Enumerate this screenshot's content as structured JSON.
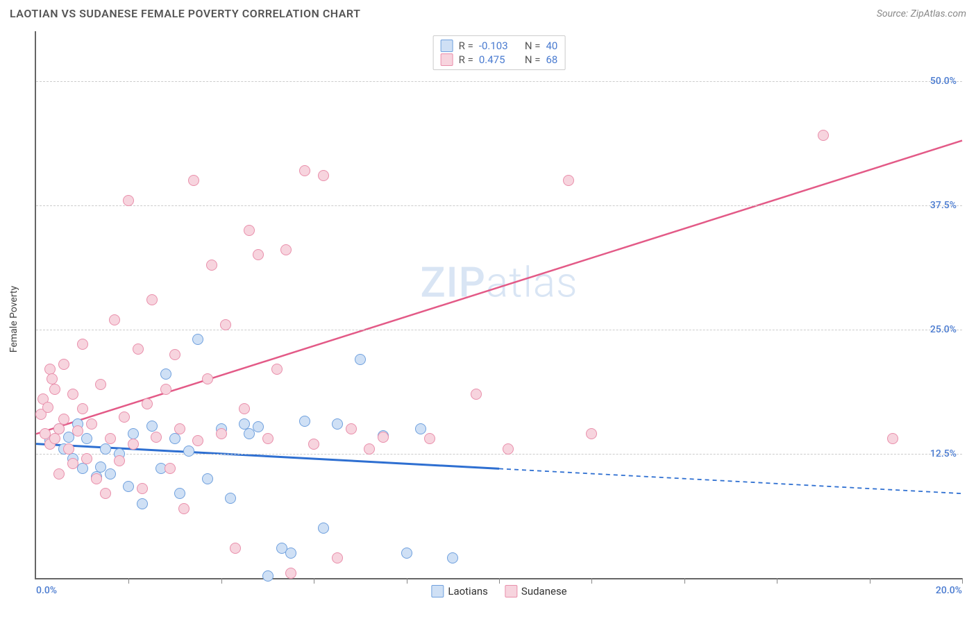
{
  "title": "LAOTIAN VS SUDANESE FEMALE POVERTY CORRELATION CHART",
  "source_label": "Source: ZipAtlas.com",
  "watermark_bold": "ZIP",
  "watermark_thin": "atlas",
  "y_axis_title": "Female Poverty",
  "chart": {
    "type": "scatter",
    "xlim": [
      0,
      20
    ],
    "ylim": [
      0,
      55
    ],
    "x_tick_positions": [
      0,
      2,
      4,
      6,
      8,
      10,
      12,
      14,
      16,
      18,
      20
    ],
    "y_gridlines": [
      12.5,
      25.0,
      37.5,
      50.0
    ],
    "y_labels": [
      "12.5%",
      "25.0%",
      "37.5%",
      "50.0%"
    ],
    "x_min_label": "0.0%",
    "x_max_label": "20.0%",
    "axis_label_color": "#4a7bd0",
    "grid_color": "#cccccc",
    "background_color": "#ffffff",
    "point_radius": 8
  },
  "series": [
    {
      "name": "Laotians",
      "fill": "#cfe0f5",
      "stroke": "#6fa0de",
      "legend_R_label": "R =",
      "legend_R_value": "-0.103",
      "legend_N_label": "N =",
      "legend_N_value": "40",
      "trend": {
        "x1": 0,
        "y1": 13.5,
        "x2_solid": 10,
        "y2_solid": 11.0,
        "x2": 20,
        "y2": 8.5,
        "color": "#2e6fd1",
        "width": 3
      },
      "points": [
        [
          0.3,
          13.8
        ],
        [
          0.5,
          15.0
        ],
        [
          0.6,
          13.0
        ],
        [
          0.7,
          14.2
        ],
        [
          0.8,
          12.0
        ],
        [
          0.9,
          15.5
        ],
        [
          1.0,
          11.0
        ],
        [
          1.1,
          14.0
        ],
        [
          1.3,
          10.2
        ],
        [
          1.4,
          11.2
        ],
        [
          1.5,
          13.0
        ],
        [
          1.6,
          10.5
        ],
        [
          1.8,
          12.5
        ],
        [
          2.0,
          9.2
        ],
        [
          2.1,
          14.5
        ],
        [
          2.3,
          7.5
        ],
        [
          2.5,
          15.3
        ],
        [
          2.7,
          11.0
        ],
        [
          2.8,
          20.5
        ],
        [
          3.0,
          14.0
        ],
        [
          3.1,
          8.5
        ],
        [
          3.3,
          12.8
        ],
        [
          3.5,
          24.0
        ],
        [
          3.7,
          10.0
        ],
        [
          4.0,
          15.0
        ],
        [
          4.2,
          8.0
        ],
        [
          4.5,
          15.5
        ],
        [
          4.6,
          14.5
        ],
        [
          4.8,
          15.2
        ],
        [
          5.0,
          0.2
        ],
        [
          5.3,
          3.0
        ],
        [
          5.5,
          2.5
        ],
        [
          5.8,
          15.8
        ],
        [
          6.2,
          5.0
        ],
        [
          6.5,
          15.5
        ],
        [
          7.0,
          22.0
        ],
        [
          7.5,
          14.3
        ],
        [
          8.0,
          2.5
        ],
        [
          8.3,
          15.0
        ],
        [
          9.0,
          2.0
        ]
      ]
    },
    {
      "name": "Sudanese",
      "fill": "#f7d4de",
      "stroke": "#e98fab",
      "legend_R_label": "R =",
      "legend_R_value": "0.475",
      "legend_N_label": "N =",
      "legend_N_value": "68",
      "trend": {
        "x1": 0,
        "y1": 14.5,
        "x2_solid": 20,
        "y2_solid": 44.0,
        "x2": 20,
        "y2": 44.0,
        "color": "#e35a87",
        "width": 2.5
      },
      "points": [
        [
          0.1,
          16.5
        ],
        [
          0.15,
          18.0
        ],
        [
          0.2,
          14.5
        ],
        [
          0.25,
          17.2
        ],
        [
          0.3,
          21.0
        ],
        [
          0.3,
          13.5
        ],
        [
          0.35,
          20.0
        ],
        [
          0.4,
          14.0
        ],
        [
          0.4,
          19.0
        ],
        [
          0.5,
          15.0
        ],
        [
          0.5,
          10.5
        ],
        [
          0.6,
          16.0
        ],
        [
          0.6,
          21.5
        ],
        [
          0.7,
          13.0
        ],
        [
          0.8,
          18.5
        ],
        [
          0.8,
          11.5
        ],
        [
          0.9,
          14.8
        ],
        [
          1.0,
          17.0
        ],
        [
          1.0,
          23.5
        ],
        [
          1.1,
          12.0
        ],
        [
          1.2,
          15.5
        ],
        [
          1.3,
          10.0
        ],
        [
          1.4,
          19.5
        ],
        [
          1.5,
          8.5
        ],
        [
          1.6,
          14.0
        ],
        [
          1.7,
          26.0
        ],
        [
          1.8,
          11.8
        ],
        [
          1.9,
          16.2
        ],
        [
          2.0,
          38.0
        ],
        [
          2.1,
          13.5
        ],
        [
          2.2,
          23.0
        ],
        [
          2.3,
          9.0
        ],
        [
          2.4,
          17.5
        ],
        [
          2.5,
          28.0
        ],
        [
          2.6,
          14.2
        ],
        [
          2.8,
          19.0
        ],
        [
          2.9,
          11.0
        ],
        [
          3.0,
          22.5
        ],
        [
          3.1,
          15.0
        ],
        [
          3.2,
          7.0
        ],
        [
          3.4,
          40.0
        ],
        [
          3.5,
          13.8
        ],
        [
          3.7,
          20.0
        ],
        [
          3.8,
          31.5
        ],
        [
          4.0,
          14.5
        ],
        [
          4.1,
          25.5
        ],
        [
          4.3,
          3.0
        ],
        [
          4.5,
          17.0
        ],
        [
          4.6,
          35.0
        ],
        [
          4.8,
          32.5
        ],
        [
          5.0,
          14.0
        ],
        [
          5.2,
          21.0
        ],
        [
          5.4,
          33.0
        ],
        [
          5.5,
          0.5
        ],
        [
          5.8,
          41.0
        ],
        [
          6.0,
          13.5
        ],
        [
          6.2,
          40.5
        ],
        [
          6.5,
          2.0
        ],
        [
          6.8,
          15.0
        ],
        [
          7.2,
          13.0
        ],
        [
          7.5,
          14.2
        ],
        [
          8.5,
          14.0
        ],
        [
          9.5,
          18.5
        ],
        [
          10.2,
          13.0
        ],
        [
          11.5,
          40.0
        ],
        [
          12.0,
          14.5
        ],
        [
          17.0,
          44.5
        ],
        [
          18.5,
          14.0
        ]
      ]
    }
  ],
  "legend_value_color": "#4a7bd0",
  "legend_text_color": "#555555"
}
